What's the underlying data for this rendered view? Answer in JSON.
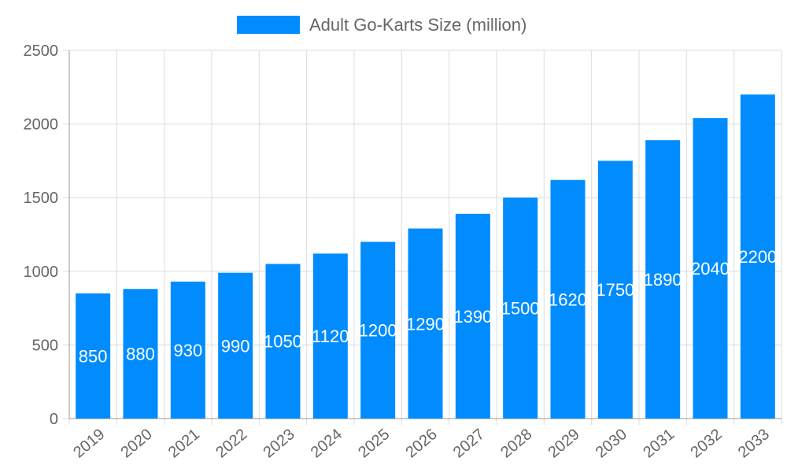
{
  "chart_data": {
    "type": "bar",
    "title": "",
    "xlabel": "",
    "ylabel": "",
    "categories": [
      "2019",
      "2020",
      "2021",
      "2022",
      "2023",
      "2024",
      "2025",
      "2026",
      "2027",
      "2028",
      "2029",
      "2030",
      "2031",
      "2032",
      "2033"
    ],
    "series": [
      {
        "name": "Adult Go-Karts Size (million)",
        "values": [
          850,
          880,
          930,
          990,
          1050,
          1120,
          1200,
          1290,
          1390,
          1500,
          1620,
          1750,
          1890,
          2040,
          2200
        ],
        "color": "#008cff"
      }
    ],
    "ylim": [
      0,
      2500
    ],
    "yticks": [
      0,
      500,
      1000,
      1500,
      2000,
      2500
    ],
    "grid": true,
    "legend": "top",
    "data_labels": true
  }
}
